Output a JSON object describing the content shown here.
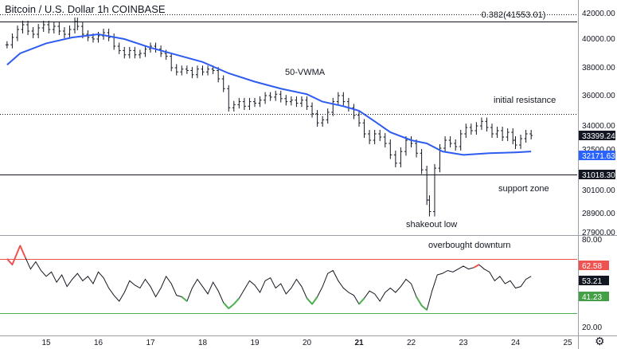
{
  "title": "Bitcoin / U.S. Dollar  1h  COINBASE",
  "settings_icon": "gear-icon",
  "chart_data": [
    {
      "type": "ohlc",
      "title": "Bitcoin / U.S. Dollar  1h  COINBASE",
      "x_ticks": [
        "15",
        "16",
        "17",
        "18",
        "19",
        "20",
        "21",
        "22",
        "23",
        "24",
        "25"
      ],
      "y_ticks": [
        42000,
        40000,
        38000,
        36000,
        34000,
        32500,
        31000,
        30100,
        28900,
        27900
      ],
      "y_tick_labels": [
        "42000.00",
        "40000.00",
        "38000.00",
        "36000.00",
        "34000.00",
        "32500.00",
        "31000.00",
        "30100.00",
        "28900.00",
        "27900.00"
      ],
      "ylim": [
        27500,
        43000
      ],
      "price_close_series": [
        [
          14.25,
          39600
        ],
        [
          14.35,
          40100
        ],
        [
          14.45,
          40600
        ],
        [
          14.55,
          40900
        ],
        [
          14.65,
          40500
        ],
        [
          14.75,
          40300
        ],
        [
          14.85,
          40700
        ],
        [
          14.95,
          40900
        ],
        [
          15.05,
          40600
        ],
        [
          15.15,
          40800
        ],
        [
          15.25,
          40500
        ],
        [
          15.35,
          40300
        ],
        [
          15.45,
          40600
        ],
        [
          15.55,
          41100
        ],
        [
          15.6,
          40800
        ],
        [
          15.7,
          40300
        ],
        [
          15.8,
          40100
        ],
        [
          15.9,
          40000
        ],
        [
          16.0,
          40200
        ],
        [
          16.1,
          40400
        ],
        [
          16.2,
          40100
        ],
        [
          16.3,
          39500
        ],
        [
          16.4,
          39200
        ],
        [
          16.5,
          38900
        ],
        [
          16.6,
          39200
        ],
        [
          16.7,
          38900
        ],
        [
          16.8,
          39000
        ],
        [
          16.9,
          39300
        ],
        [
          17.0,
          39500
        ],
        [
          17.1,
          39300
        ],
        [
          17.2,
          39000
        ],
        [
          17.3,
          38800
        ],
        [
          17.4,
          38000
        ],
        [
          17.5,
          37700
        ],
        [
          17.6,
          37900
        ],
        [
          17.7,
          37800
        ],
        [
          17.8,
          37500
        ],
        [
          17.9,
          37900
        ],
        [
          18.0,
          37700
        ],
        [
          18.1,
          37900
        ],
        [
          18.2,
          37800
        ],
        [
          18.3,
          37200
        ],
        [
          18.4,
          36500
        ],
        [
          18.5,
          35200
        ],
        [
          18.6,
          35400
        ],
        [
          18.7,
          35600
        ],
        [
          18.8,
          35300
        ],
        [
          18.9,
          35600
        ],
        [
          19.0,
          35500
        ],
        [
          19.1,
          35700
        ],
        [
          19.2,
          36000
        ],
        [
          19.3,
          35900
        ],
        [
          19.4,
          36100
        ],
        [
          19.5,
          35800
        ],
        [
          19.6,
          35600
        ],
        [
          19.7,
          35700
        ],
        [
          19.8,
          35500
        ],
        [
          19.9,
          35700
        ],
        [
          20.0,
          35300
        ],
        [
          20.1,
          34800
        ],
        [
          20.2,
          34200
        ],
        [
          20.3,
          34400
        ],
        [
          20.4,
          34900
        ],
        [
          20.5,
          35600
        ],
        [
          20.6,
          36000
        ],
        [
          20.7,
          35600
        ],
        [
          20.8,
          35200
        ],
        [
          20.9,
          34700
        ],
        [
          21.0,
          34200
        ],
        [
          21.1,
          33500
        ],
        [
          21.2,
          33100
        ],
        [
          21.3,
          33500
        ],
        [
          21.4,
          33300
        ],
        [
          21.5,
          32900
        ],
        [
          21.6,
          32200
        ],
        [
          21.7,
          31700
        ],
        [
          21.8,
          32400
        ],
        [
          21.9,
          33100
        ],
        [
          22.0,
          32900
        ],
        [
          22.1,
          32300
        ],
        [
          22.2,
          31300
        ],
        [
          22.3,
          29600
        ],
        [
          22.35,
          29000
        ],
        [
          22.45,
          31400
        ],
        [
          22.55,
          32600
        ],
        [
          22.65,
          33100
        ],
        [
          22.75,
          32900
        ],
        [
          22.85,
          32700
        ],
        [
          22.95,
          33500
        ],
        [
          23.05,
          33900
        ],
        [
          23.15,
          33700
        ],
        [
          23.25,
          34000
        ],
        [
          23.35,
          34300
        ],
        [
          23.45,
          33900
        ],
        [
          23.55,
          33500
        ],
        [
          23.65,
          33700
        ],
        [
          23.75,
          33300
        ],
        [
          23.85,
          33600
        ],
        [
          23.95,
          33100
        ],
        [
          24.0,
          32800
        ],
        [
          24.1,
          33200
        ],
        [
          24.2,
          33500
        ],
        [
          24.3,
          33400
        ]
      ],
      "vwma_series": [
        [
          14.25,
          38200
        ],
        [
          14.5,
          39000
        ],
        [
          15.0,
          39700
        ],
        [
          15.5,
          40100
        ],
        [
          16.0,
          40300
        ],
        [
          16.5,
          40000
        ],
        [
          17.0,
          39400
        ],
        [
          17.5,
          38900
        ],
        [
          18.0,
          38400
        ],
        [
          18.5,
          37600
        ],
        [
          19.0,
          37000
        ],
        [
          19.5,
          36500
        ],
        [
          20.0,
          36100
        ],
        [
          20.3,
          35600
        ],
        [
          20.7,
          35300
        ],
        [
          21.0,
          35000
        ],
        [
          21.3,
          34300
        ],
        [
          21.6,
          33600
        ],
        [
          22.0,
          33100
        ],
        [
          22.3,
          32900
        ],
        [
          22.6,
          32400
        ],
        [
          23.0,
          32200
        ],
        [
          23.5,
          32300
        ],
        [
          24.0,
          32350
        ],
        [
          24.3,
          32400
        ]
      ],
      "horizontal_levels": [
        {
          "price": 41553.01,
          "style": "dotted"
        },
        {
          "price": 41100,
          "style": "solid"
        },
        {
          "price": 34800,
          "style": "dotted"
        },
        {
          "price": 31018.3,
          "style": "solid"
        }
      ],
      "annotations": [
        "0.382(41553.01)",
        "50-VWMA",
        "initial resistance",
        "support zone",
        "shakeout low"
      ],
      "badges": [
        {
          "label": "33399.24",
          "bg": "#131722",
          "price": 33399.24
        },
        {
          "label": "32171.63",
          "bg": "#2962ff",
          "price": 32171.63
        },
        {
          "label": "31018.30",
          "bg": "#131722",
          "price": 31018.3
        }
      ],
      "colors": {
        "price": "#131722",
        "vwma": "#2e5cf0"
      }
    },
    {
      "type": "line",
      "y_ticks": [
        80.0,
        20.0
      ],
      "y_tick_labels": [
        "80.00",
        "20.00"
      ],
      "ylim": [
        20,
        80
      ],
      "overbought": 62.58,
      "oversold": 41.23,
      "annotation": "overbought downturn",
      "rsi_series": [
        [
          14.25,
          67
        ],
        [
          14.35,
          63
        ],
        [
          14.5,
          76
        ],
        [
          14.6,
          68
        ],
        [
          14.7,
          60
        ],
        [
          14.8,
          65
        ],
        [
          14.9,
          59
        ],
        [
          15.0,
          55
        ],
        [
          15.1,
          58
        ],
        [
          15.2,
          51
        ],
        [
          15.3,
          56
        ],
        [
          15.4,
          48
        ],
        [
          15.5,
          53
        ],
        [
          15.6,
          57
        ],
        [
          15.7,
          52
        ],
        [
          15.8,
          55
        ],
        [
          15.9,
          50
        ],
        [
          16.0,
          58
        ],
        [
          16.1,
          54
        ],
        [
          16.2,
          47
        ],
        [
          16.3,
          42
        ],
        [
          16.4,
          38
        ],
        [
          16.5,
          44
        ],
        [
          16.6,
          52
        ],
        [
          16.7,
          49
        ],
        [
          16.8,
          47
        ],
        [
          16.9,
          53
        ],
        [
          17.0,
          48
        ],
        [
          17.1,
          41
        ],
        [
          17.2,
          47
        ],
        [
          17.3,
          55
        ],
        [
          17.4,
          50
        ],
        [
          17.5,
          42
        ],
        [
          17.6,
          41
        ],
        [
          17.7,
          38
        ],
        [
          17.8,
          47
        ],
        [
          17.9,
          53
        ],
        [
          18.0,
          48
        ],
        [
          18.1,
          43
        ],
        [
          18.2,
          51
        ],
        [
          18.3,
          45
        ],
        [
          18.4,
          37
        ],
        [
          18.5,
          33
        ],
        [
          18.6,
          36
        ],
        [
          18.7,
          40
        ],
        [
          18.8,
          46
        ],
        [
          18.9,
          52
        ],
        [
          19.0,
          49
        ],
        [
          19.1,
          44
        ],
        [
          19.2,
          52
        ],
        [
          19.3,
          54
        ],
        [
          19.4,
          47
        ],
        [
          19.5,
          50
        ],
        [
          19.6,
          43
        ],
        [
          19.7,
          47
        ],
        [
          19.8,
          53
        ],
        [
          19.9,
          48
        ],
        [
          20.0,
          40
        ],
        [
          20.1,
          36
        ],
        [
          20.2,
          41
        ],
        [
          20.3,
          48
        ],
        [
          20.4,
          57
        ],
        [
          20.5,
          59
        ],
        [
          20.6,
          52
        ],
        [
          20.7,
          47
        ],
        [
          20.8,
          44
        ],
        [
          20.9,
          42
        ],
        [
          21.0,
          36
        ],
        [
          21.1,
          40
        ],
        [
          21.2,
          45
        ],
        [
          21.3,
          43
        ],
        [
          21.4,
          38
        ],
        [
          21.5,
          44
        ],
        [
          21.6,
          47
        ],
        [
          21.7,
          44
        ],
        [
          21.8,
          48
        ],
        [
          21.9,
          53
        ],
        [
          22.0,
          50
        ],
        [
          22.1,
          41
        ],
        [
          22.2,
          35
        ],
        [
          22.3,
          32
        ],
        [
          22.4,
          45
        ],
        [
          22.5,
          56
        ],
        [
          22.6,
          57
        ],
        [
          22.7,
          59
        ],
        [
          22.8,
          58
        ],
        [
          22.9,
          60
        ],
        [
          23.0,
          62
        ],
        [
          23.1,
          60
        ],
        [
          23.2,
          61
        ],
        [
          23.3,
          63
        ],
        [
          23.4,
          60
        ],
        [
          23.5,
          58
        ],
        [
          23.6,
          52
        ],
        [
          23.7,
          55
        ],
        [
          23.8,
          50
        ],
        [
          23.9,
          52
        ],
        [
          24.0,
          47
        ],
        [
          24.1,
          48
        ],
        [
          24.2,
          53
        ],
        [
          24.3,
          55
        ]
      ],
      "badges": [
        {
          "label": "62.58",
          "bg": "#ef5350",
          "value": 62.58
        },
        {
          "label": "53.21",
          "bg": "#131722",
          "value": 53.21
        },
        {
          "label": "41.23",
          "bg": "#43a047",
          "value": 41.23
        }
      ],
      "colors": {
        "line": "#131722",
        "upper": "#ef5350",
        "lower": "#4caf50"
      }
    }
  ]
}
